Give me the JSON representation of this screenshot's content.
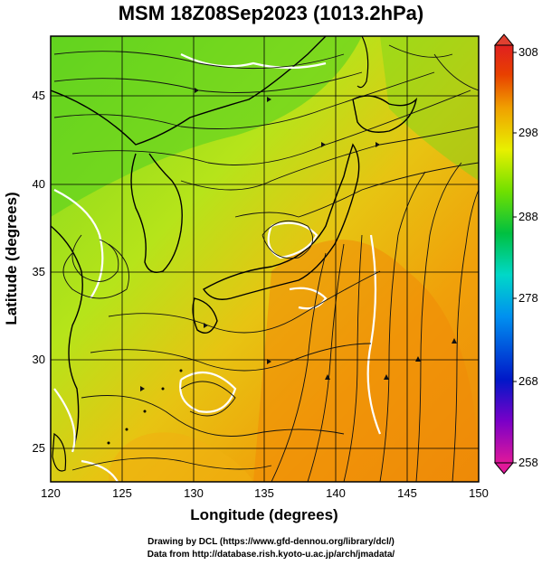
{
  "title": "MSM 18Z08Sep2023 (1013.2hPa)",
  "map": {
    "x_axis": {
      "label": "Longitude (degrees)",
      "range": [
        120,
        150
      ],
      "ticks": [
        "120",
        "125",
        "130",
        "135",
        "140",
        "145",
        "150"
      ]
    },
    "y_axis": {
      "label": "Latitude  (degrees)",
      "range": [
        22.4,
        47.6
      ],
      "ticks": [
        "25",
        "30",
        "35",
        "40",
        "45"
      ]
    },
    "grid": true,
    "field": "temperature shading with streamlines of surface wind"
  },
  "colorbar": {
    "ticks": [
      "308",
      "298",
      "288",
      "278",
      "268",
      "258"
    ],
    "range": [
      258,
      308
    ],
    "colors": [
      "#e0189a",
      "#7a00c8",
      "#0018c8",
      "#0090f0",
      "#00d8c8",
      "#00c040",
      "#70e000",
      "#e8f000",
      "#f0a000",
      "#e84000",
      "#e02020"
    ]
  },
  "credits": {
    "line1": "Drawing by DCL (https://www.gfd-dennou.org/library/dcl/)",
    "line2": "Data from http://database.rish.kyoto-u.ac.jp/arch/jmadata/"
  }
}
